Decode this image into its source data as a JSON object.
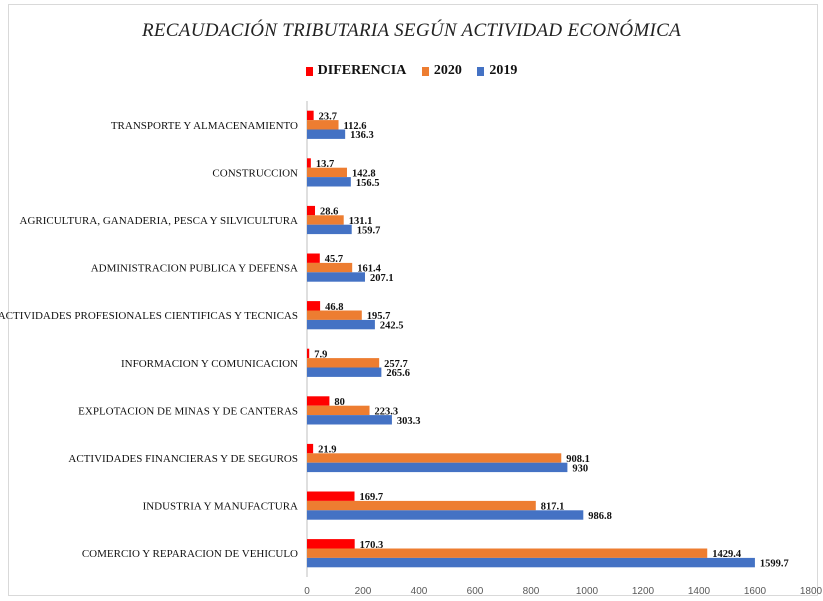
{
  "chart_data": {
    "type": "bar",
    "orientation": "horizontal",
    "title": "RECAUDACIÓN TRIBUTARIA SEGÚN ACTIVIDAD ECONÓMICA",
    "categories": [
      "TRANSPORTE Y ALMACENAMIENTO",
      "CONSTRUCCION",
      "AGRICULTURA, GANADERIA, PESCA Y SILVICULTURA",
      "ADMINISTRACION PUBLICA Y DEFENSA",
      "ACTIVIDADES PROFESIONALES CIENTIFICAS Y TECNICAS",
      "INFORMACION Y COMUNICACION",
      "EXPLOTACION DE MINAS Y DE CANTERAS",
      "ACTIVIDADES FINANCIERAS Y DE SEGUROS",
      "INDUSTRIA Y MANUFACTURA",
      "COMERCIO Y REPARACION DE VEHICULO"
    ],
    "series": [
      {
        "name": "DIFERENCIA",
        "color": "#ff0000",
        "values": [
          23.7,
          13.7,
          28.6,
          45.7,
          46.8,
          7.9,
          80,
          21.9,
          169.7,
          170.3
        ],
        "labels": [
          "23.7",
          "13.7",
          "28.6",
          "45.7",
          "46.8",
          "7.9",
          "80",
          "21.9",
          "169.7",
          "170.3"
        ]
      },
      {
        "name": "2020",
        "color": "#ed7d31",
        "values": [
          112.6,
          142.8,
          131.1,
          161.4,
          195.7,
          257.7,
          223.3,
          908.1,
          817.1,
          1429.4
        ],
        "labels": [
          "112.6",
          "142.8",
          "131.1",
          "161.4",
          "195.7",
          "257.7",
          "223.3",
          "908.1",
          "817.1",
          "1429.4"
        ]
      },
      {
        "name": "2019",
        "color": "#4472c4",
        "values": [
          136.3,
          156.5,
          159.7,
          207.1,
          242.5,
          265.6,
          303.3,
          930,
          986.8,
          1599.7
        ],
        "labels": [
          "136.3",
          "156.5",
          "159.7",
          "207.1",
          "242.5",
          "265.6",
          "303.3",
          "930",
          "986.8",
          "1599.7"
        ]
      }
    ],
    "xlim": [
      0,
      1800
    ],
    "xticks": [
      "0",
      "200",
      "400",
      "600",
      "800",
      "1000",
      "1200",
      "1400",
      "1600",
      "1800"
    ],
    "legend_position": "top",
    "grid": false
  }
}
